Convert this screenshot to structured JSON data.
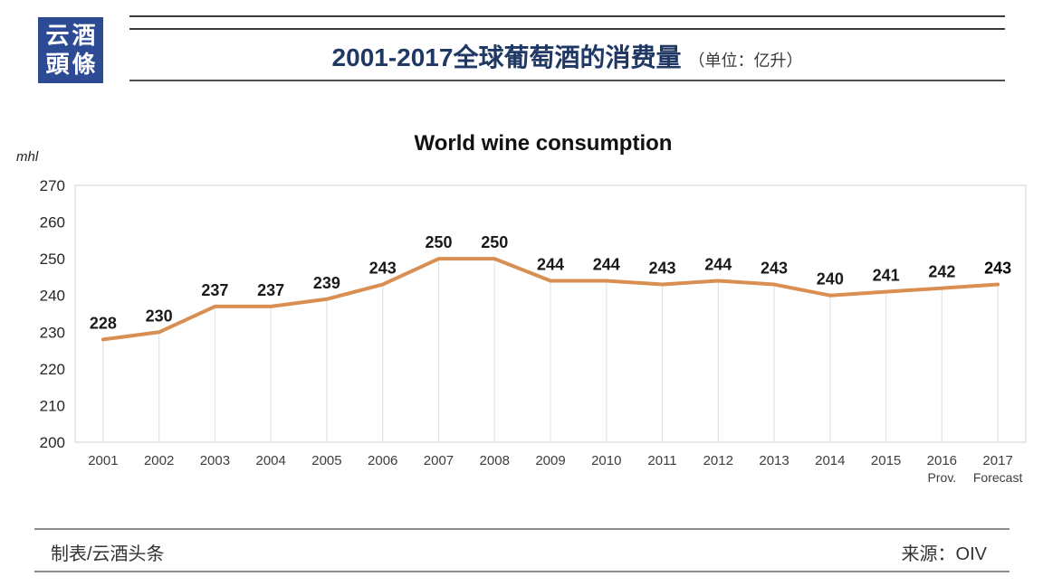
{
  "header": {
    "logo": {
      "line1": "云酒",
      "line2": "頭條",
      "bg_color": "#2D4B94",
      "text_color": "#FFFFFF"
    },
    "title": "2001-2017全球葡萄酒的消费量",
    "unit": "（单位：亿升）",
    "title_color": "#1F3864"
  },
  "chart_data": {
    "type": "line",
    "title": "World wine consumption",
    "ylabel": "mhl",
    "categories": [
      "2001",
      "2002",
      "2003",
      "2004",
      "2005",
      "2006",
      "2007",
      "2008",
      "2009",
      "2010",
      "2011",
      "2012",
      "2013",
      "2014",
      "2015",
      "2016",
      "2017"
    ],
    "category_notes": [
      "",
      "",
      "",
      "",
      "",
      "",
      "",
      "",
      "",
      "",
      "",
      "",
      "",
      "",
      "",
      "Prov.",
      "Forecast"
    ],
    "values": [
      228,
      230,
      237,
      237,
      239,
      243,
      250,
      250,
      244,
      244,
      243,
      244,
      243,
      240,
      241,
      242,
      243
    ],
    "ylim": [
      200,
      270
    ],
    "ytick_step": 10,
    "line_color": "#D98E52",
    "drop_line_color": "#E3E3E3",
    "plot_border_color": "#D9D9D9",
    "label_color": "#1a1a1a",
    "axis_label_color": "#262626",
    "xlabel_color": "#3d3d3d",
    "grid": "vertical-drop-lines",
    "legend_position": "none",
    "last_value_bold": true
  },
  "footer": {
    "left": "制表/云酒头条",
    "right": "来源：OIV"
  }
}
